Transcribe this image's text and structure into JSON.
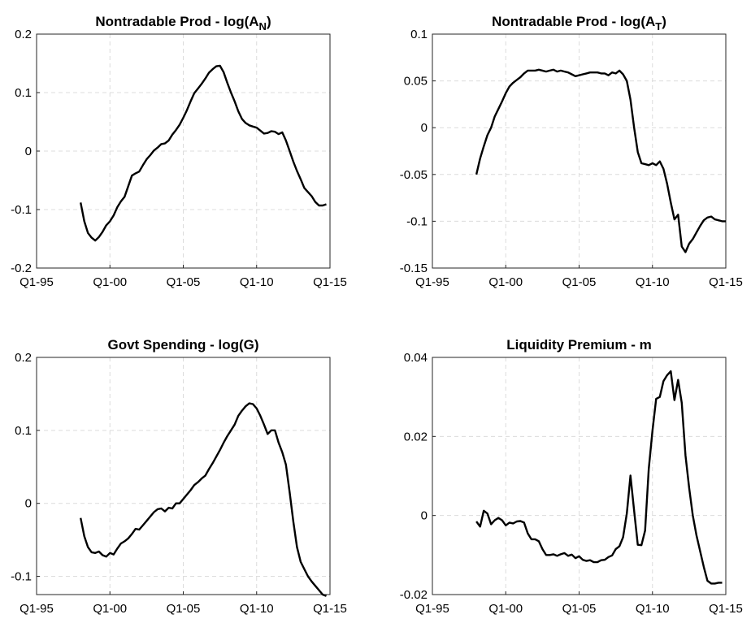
{
  "chart_data": [
    {
      "type": "line",
      "title": "Nontradable Prod - log(A",
      "title_subscript": "N",
      "title_suffix": ")",
      "xlim": [
        1995,
        2015
      ],
      "ylim": [
        -0.2,
        0.2
      ],
      "x_tick_values": [
        1995,
        2000,
        2005,
        2010,
        2015
      ],
      "x_tick_labels": [
        "Q1-95",
        "Q1-00",
        "Q1-05",
        "Q1-10",
        "Q1-15"
      ],
      "y_tick_values": [
        -0.2,
        -0.1,
        0,
        0.1,
        0.2
      ],
      "y_tick_labels": [
        "-0.2",
        "-0.1",
        "0",
        "0.1",
        "0.2"
      ],
      "grid": true,
      "series": [
        {
          "x": [
            1998,
            1998.25,
            1998.5,
            1998.75,
            1999,
            1999.25,
            1999.5,
            1999.75,
            2000,
            2000.25,
            2000.5,
            2000.75,
            2001,
            2001.25,
            2001.5,
            2001.75,
            2002,
            2002.25,
            2002.5,
            2002.75,
            2003,
            2003.25,
            2003.5,
            2003.75,
            2004,
            2004.25,
            2004.5,
            2004.75,
            2005,
            2005.25,
            2005.5,
            2005.75,
            2006,
            2006.25,
            2006.5,
            2006.75,
            2007,
            2007.25,
            2007.5,
            2007.75,
            2008,
            2008.25,
            2008.5,
            2008.75,
            2009,
            2009.25,
            2009.5,
            2009.75,
            2010,
            2010.25,
            2010.5,
            2010.75,
            2011,
            2011.25,
            2011.5,
            2011.75,
            2012,
            2012.25,
            2012.5,
            2012.75,
            2013,
            2013.25,
            2013.5,
            2013.75,
            2014,
            2014.25,
            2014.5,
            2014.75
          ],
          "values": [
            -0.088,
            -0.12,
            -0.14,
            -0.148,
            -0.153,
            -0.147,
            -0.138,
            -0.127,
            -0.12,
            -0.11,
            -0.096,
            -0.086,
            -0.078,
            -0.06,
            -0.042,
            -0.038,
            -0.035,
            -0.024,
            -0.014,
            -0.007,
            0.001,
            0.006,
            0.012,
            0.013,
            0.018,
            0.028,
            0.036,
            0.045,
            0.057,
            0.07,
            0.085,
            0.099,
            0.107,
            0.115,
            0.124,
            0.134,
            0.14,
            0.145,
            0.146,
            0.135,
            0.117,
            0.1,
            0.085,
            0.068,
            0.055,
            0.048,
            0.044,
            0.042,
            0.04,
            0.035,
            0.03,
            0.031,
            0.034,
            0.033,
            0.029,
            0.032,
            0.018,
            0.0,
            -0.018,
            -0.034,
            -0.048,
            -0.063,
            -0.07,
            -0.077,
            -0.087,
            -0.093,
            -0.093,
            -0.091
          ]
        }
      ]
    },
    {
      "type": "line",
      "title": "Nontradable Prod - log(A",
      "title_subscript": "T",
      "title_suffix": ")",
      "xlim": [
        1995,
        2015
      ],
      "ylim": [
        -0.15,
        0.1
      ],
      "x_tick_values": [
        1995,
        2000,
        2005,
        2010,
        2015
      ],
      "x_tick_labels": [
        "Q1-95",
        "Q1-00",
        "Q1-05",
        "Q1-10",
        "Q1-15"
      ],
      "y_tick_values": [
        -0.15,
        -0.1,
        -0.05,
        0,
        0.05,
        0.1
      ],
      "y_tick_labels": [
        "-0.15",
        "-0.1",
        "-0.05",
        "0",
        "0.05",
        "0.1"
      ],
      "grid": true,
      "series": [
        {
          "x": [
            1998,
            1998.25,
            1998.5,
            1998.75,
            1999,
            1999.25,
            1999.5,
            1999.75,
            2000,
            2000.25,
            2000.5,
            2000.75,
            2001,
            2001.25,
            2001.5,
            2001.75,
            2002,
            2002.25,
            2002.5,
            2002.75,
            2003,
            2003.25,
            2003.5,
            2003.75,
            2004,
            2004.25,
            2004.5,
            2004.75,
            2005,
            2005.25,
            2005.5,
            2005.75,
            2006,
            2006.25,
            2006.5,
            2006.75,
            2007,
            2007.25,
            2007.5,
            2007.75,
            2008,
            2008.25,
            2008.5,
            2008.75,
            2009,
            2009.25,
            2009.5,
            2009.75,
            2010,
            2010.25,
            2010.5,
            2010.75,
            2011,
            2011.25,
            2011.5,
            2011.75,
            2012,
            2012.25,
            2012.5,
            2012.75,
            2013,
            2013.25,
            2013.5,
            2013.75,
            2014,
            2014.25,
            2014.5,
            2014.75,
            2015
          ],
          "values": [
            -0.05,
            -0.033,
            -0.02,
            -0.008,
            0.0,
            0.012,
            0.02,
            0.028,
            0.037,
            0.044,
            0.048,
            0.051,
            0.054,
            0.058,
            0.061,
            0.061,
            0.061,
            0.062,
            0.061,
            0.06,
            0.061,
            0.062,
            0.06,
            0.061,
            0.06,
            0.059,
            0.057,
            0.055,
            0.056,
            0.057,
            0.058,
            0.059,
            0.059,
            0.059,
            0.058,
            0.058,
            0.056,
            0.059,
            0.058,
            0.061,
            0.057,
            0.05,
            0.03,
            0.0,
            -0.026,
            -0.038,
            -0.039,
            -0.04,
            -0.038,
            -0.04,
            -0.036,
            -0.044,
            -0.06,
            -0.08,
            -0.098,
            -0.093,
            -0.127,
            -0.133,
            -0.124,
            -0.119,
            -0.112,
            -0.105,
            -0.099,
            -0.096,
            -0.095,
            -0.098,
            -0.099,
            -0.1,
            -0.1
          ]
        }
      ]
    },
    {
      "type": "line",
      "title": "Govt Spending - log(G)",
      "xlim": [
        1995,
        2015
      ],
      "ylim": [
        -0.125,
        0.2
      ],
      "x_tick_values": [
        1995,
        2000,
        2005,
        2010,
        2015
      ],
      "x_tick_labels": [
        "Q1-95",
        "Q1-00",
        "Q1-05",
        "Q1-10",
        "Q1-15"
      ],
      "y_tick_values": [
        -0.1,
        0,
        0.1,
        0.2
      ],
      "y_tick_labels": [
        "-0.1",
        "0",
        "0.1",
        "0.2"
      ],
      "grid": true,
      "series": [
        {
          "x": [
            1998,
            1998.25,
            1998.5,
            1998.75,
            1999,
            1999.25,
            1999.5,
            1999.75,
            2000,
            2000.25,
            2000.5,
            2000.75,
            2001,
            2001.25,
            2001.5,
            2001.75,
            2002,
            2002.25,
            2002.5,
            2002.75,
            2003,
            2003.25,
            2003.5,
            2003.75,
            2004,
            2004.25,
            2004.5,
            2004.75,
            2005,
            2005.25,
            2005.5,
            2005.75,
            2006,
            2006.25,
            2006.5,
            2006.75,
            2007,
            2007.25,
            2007.5,
            2007.75,
            2008,
            2008.25,
            2008.5,
            2008.75,
            2009,
            2009.25,
            2009.5,
            2009.75,
            2010,
            2010.25,
            2010.5,
            2010.75,
            2011,
            2011.25,
            2011.5,
            2011.75,
            2012,
            2012.25,
            2012.5,
            2012.75,
            2013,
            2013.25,
            2013.5,
            2013.75,
            2014,
            2014.25,
            2014.5,
            2014.75
          ],
          "values": [
            -0.02,
            -0.045,
            -0.06,
            -0.067,
            -0.068,
            -0.066,
            -0.071,
            -0.073,
            -0.068,
            -0.07,
            -0.062,
            -0.055,
            -0.052,
            -0.048,
            -0.042,
            -0.035,
            -0.036,
            -0.03,
            -0.024,
            -0.018,
            -0.012,
            -0.008,
            -0.007,
            -0.011,
            -0.006,
            -0.007,
            0.0,
            0.0,
            0.006,
            0.012,
            0.018,
            0.025,
            0.029,
            0.034,
            0.038,
            0.047,
            0.055,
            0.064,
            0.073,
            0.083,
            0.092,
            0.1,
            0.108,
            0.12,
            0.127,
            0.133,
            0.137,
            0.136,
            0.13,
            0.12,
            0.108,
            0.095,
            0.1,
            0.1,
            0.083,
            0.07,
            0.053,
            0.015,
            -0.025,
            -0.06,
            -0.08,
            -0.09,
            -0.1,
            -0.107,
            -0.113,
            -0.119,
            -0.125,
            -0.127
          ]
        }
      ]
    },
    {
      "type": "line",
      "title": "Liquidity Premium - m",
      "xlim": [
        1995,
        2015
      ],
      "ylim": [
        -0.02,
        0.04
      ],
      "x_tick_values": [
        1995,
        2000,
        2005,
        2010,
        2015
      ],
      "x_tick_labels": [
        "Q1-95",
        "Q1-00",
        "Q1-05",
        "Q1-10",
        "Q1-15"
      ],
      "y_tick_values": [
        -0.02,
        0,
        0.02,
        0.04
      ],
      "y_tick_labels": [
        "-0.02",
        "0",
        "0.02",
        "0.04"
      ],
      "grid": true,
      "series": [
        {
          "x": [
            1998,
            1998.25,
            1998.5,
            1998.75,
            1999,
            1999.25,
            1999.5,
            1999.75,
            2000,
            2000.25,
            2000.5,
            2000.75,
            2001,
            2001.25,
            2001.5,
            2001.75,
            2002,
            2002.25,
            2002.5,
            2002.75,
            2003,
            2003.25,
            2003.5,
            2003.75,
            2004,
            2004.25,
            2004.5,
            2004.75,
            2005,
            2005.25,
            2005.5,
            2005.75,
            2006,
            2006.25,
            2006.5,
            2006.75,
            2007,
            2007.25,
            2007.5,
            2007.75,
            2008,
            2008.25,
            2008.5,
            2008.75,
            2009,
            2009.25,
            2009.5,
            2009.75,
            2010,
            2010.25,
            2010.5,
            2010.75,
            2011,
            2011.25,
            2011.5,
            2011.75,
            2012,
            2012.25,
            2012.5,
            2012.75,
            2013,
            2013.25,
            2013.5,
            2013.75,
            2014,
            2014.25,
            2014.5,
            2014.75
          ],
          "values": [
            -0.0015,
            -0.0028,
            0.0012,
            0.0005,
            -0.0022,
            -0.0012,
            -0.0006,
            -0.0012,
            -0.0025,
            -0.0018,
            -0.002,
            -0.0015,
            -0.0014,
            -0.0018,
            -0.0045,
            -0.006,
            -0.006,
            -0.0065,
            -0.0085,
            -0.01,
            -0.01,
            -0.0098,
            -0.0102,
            -0.0098,
            -0.0095,
            -0.0102,
            -0.0099,
            -0.0108,
            -0.0103,
            -0.0112,
            -0.0115,
            -0.0113,
            -0.0118,
            -0.0118,
            -0.0113,
            -0.0112,
            -0.0105,
            -0.0101,
            -0.0085,
            -0.0078,
            -0.0055,
            0.0005,
            0.0101,
            0.0012,
            -0.0074,
            -0.0075,
            -0.0038,
            0.0118,
            0.0215,
            0.0295,
            0.03,
            0.034,
            0.0355,
            0.0365,
            0.0292,
            0.0343,
            0.0285,
            0.0152,
            0.007,
            0.0,
            -0.005,
            -0.009,
            -0.013,
            -0.0165,
            -0.0172,
            -0.0172,
            -0.017,
            -0.017
          ]
        }
      ]
    }
  ]
}
